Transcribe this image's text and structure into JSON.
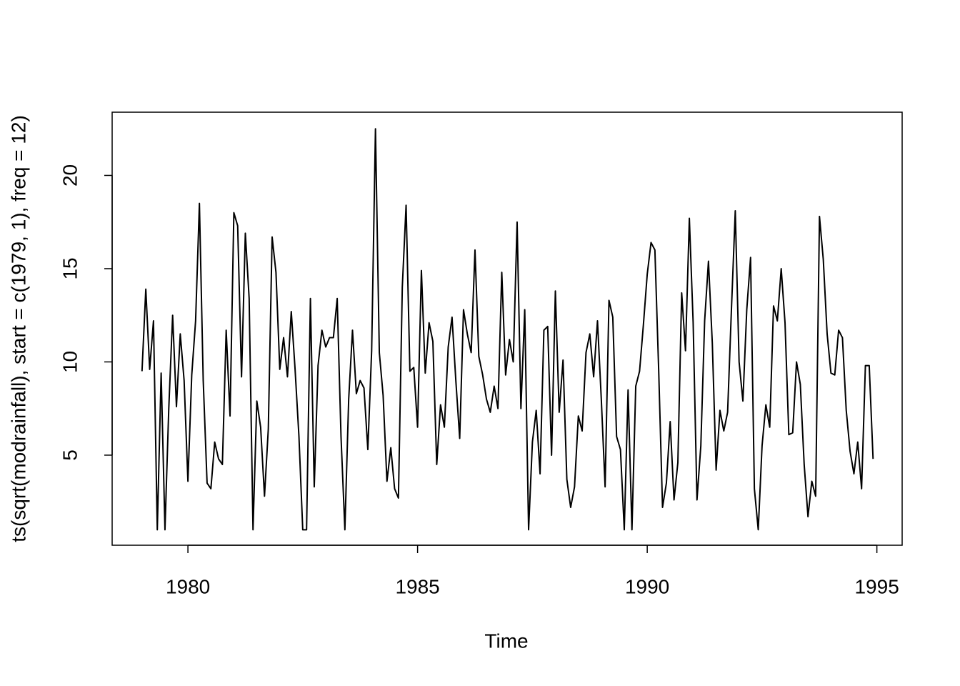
{
  "chart_data": {
    "type": "line",
    "xlabel": "Time",
    "ylabel": "ts(sqrt(modrainfall), start = c(1979, 1), freq = 12)",
    "x": [
      1979,
      1979.083,
      1979.167,
      1979.25,
      1979.333,
      1979.417,
      1979.5,
      1979.583,
      1979.667,
      1979.75,
      1979.833,
      1979.917,
      1980,
      1980.083,
      1980.167,
      1980.25,
      1980.333,
      1980.417,
      1980.5,
      1980.583,
      1980.667,
      1980.75,
      1980.833,
      1980.917,
      1981,
      1981.083,
      1981.167,
      1981.25,
      1981.333,
      1981.417,
      1981.5,
      1981.583,
      1981.667,
      1981.75,
      1981.833,
      1981.917,
      1982,
      1982.083,
      1982.167,
      1982.25,
      1982.333,
      1982.417,
      1982.5,
      1982.583,
      1982.667,
      1982.75,
      1982.833,
      1982.917,
      1983,
      1983.083,
      1983.167,
      1983.25,
      1983.333,
      1983.417,
      1983.5,
      1983.583,
      1983.667,
      1983.75,
      1983.833,
      1983.917,
      1984,
      1984.083,
      1984.167,
      1984.25,
      1984.333,
      1984.417,
      1984.5,
      1984.583,
      1984.667,
      1984.75,
      1984.833,
      1984.917,
      1985,
      1985.083,
      1985.167,
      1985.25,
      1985.333,
      1985.417,
      1985.5,
      1985.583,
      1985.667,
      1985.75,
      1985.833,
      1985.917,
      1986,
      1986.083,
      1986.167,
      1986.25,
      1986.333,
      1986.417,
      1986.5,
      1986.583,
      1986.667,
      1986.75,
      1986.833,
      1986.917,
      1987,
      1987.083,
      1987.167,
      1987.25,
      1987.333,
      1987.417,
      1987.5,
      1987.583,
      1987.667,
      1987.75,
      1987.833,
      1987.917,
      1988,
      1988.083,
      1988.167,
      1988.25,
      1988.333,
      1988.417,
      1988.5,
      1988.583,
      1988.667,
      1988.75,
      1988.833,
      1988.917,
      1989,
      1989.083,
      1989.167,
      1989.25,
      1989.333,
      1989.417,
      1989.5,
      1989.583,
      1989.667,
      1989.75,
      1989.833,
      1989.917,
      1990,
      1990.083,
      1990.167,
      1990.25,
      1990.333,
      1990.417,
      1990.5,
      1990.583,
      1990.667,
      1990.75,
      1990.833,
      1990.917,
      1991,
      1991.083,
      1991.167,
      1991.25,
      1991.333,
      1991.417,
      1991.5,
      1991.583,
      1991.667,
      1991.75,
      1991.833,
      1991.917,
      1992,
      1992.083,
      1992.167,
      1992.25,
      1992.333,
      1992.417,
      1992.5,
      1992.583,
      1992.667,
      1992.75,
      1992.833,
      1992.917,
      1993,
      1993.083,
      1993.167,
      1993.25,
      1993.333,
      1993.417,
      1993.5,
      1993.583,
      1993.667,
      1993.75,
      1993.833,
      1993.917,
      1994,
      1994.083,
      1994.167,
      1994.25,
      1994.333,
      1994.417,
      1994.5,
      1994.583,
      1994.667,
      1994.75,
      1994.833,
      1994.917
    ],
    "series": [
      {
        "color": "#000000",
        "values": [
          9.5,
          13.9,
          9.6,
          12.2,
          1.0,
          9.4,
          1.0,
          7.5,
          12.5,
          7.6,
          11.5,
          9.0,
          3.6,
          9.3,
          12.2,
          18.5,
          9.0,
          3.5,
          3.2,
          5.7,
          4.8,
          4.5,
          11.7,
          7.1,
          18.0,
          17.3,
          9.2,
          16.9,
          13.4,
          1.0,
          7.9,
          6.5,
          2.8,
          6.4,
          16.7,
          14.8,
          9.6,
          11.3,
          9.2,
          12.7,
          9.6,
          6.0,
          1.0,
          1.0,
          13.4,
          3.3,
          9.8,
          11.7,
          10.8,
          11.3,
          11.3,
          13.4,
          6.0,
          1.0,
          8.0,
          11.7,
          8.3,
          9.0,
          8.6,
          5.3,
          10.6,
          22.5,
          10.5,
          8.2,
          3.6,
          5.4,
          3.2,
          2.7,
          14.0,
          18.4,
          9.5,
          9.7,
          6.5,
          14.9,
          9.4,
          12.1,
          11.1,
          4.5,
          7.7,
          6.5,
          10.8,
          12.4,
          9.0,
          5.9,
          12.8,
          11.5,
          10.5,
          16.0,
          10.3,
          9.3,
          8.0,
          7.3,
          8.7,
          7.5,
          14.8,
          9.3,
          11.2,
          10.0,
          17.5,
          7.5,
          12.8,
          1.0,
          5.7,
          7.4,
          4.0,
          11.7,
          11.9,
          5.0,
          13.8,
          7.3,
          10.1,
          3.7,
          2.2,
          3.3,
          7.1,
          6.3,
          10.5,
          11.5,
          9.2,
          12.2,
          8.0,
          3.3,
          13.3,
          12.4,
          6.0,
          5.3,
          1.0,
          8.5,
          1.0,
          8.7,
          9.5,
          12.0,
          14.7,
          16.4,
          16.0,
          9.5,
          2.2,
          3.5,
          6.8,
          2.6,
          4.6,
          13.7,
          10.6,
          17.7,
          12.1,
          2.6,
          5.5,
          12.2,
          15.4,
          11.0,
          4.2,
          7.4,
          6.3,
          7.3,
          12.8,
          18.1,
          10.0,
          7.9,
          12.8,
          15.6,
          3.2,
          1.0,
          5.5,
          7.7,
          6.5,
          13.0,
          12.2,
          15.0,
          12.1,
          6.1,
          6.2,
          10.0,
          8.8,
          4.5,
          1.7,
          3.6,
          2.8,
          17.8,
          15.5,
          11.5,
          9.4,
          9.3,
          11.7,
          11.3,
          7.4,
          5.2,
          4.0,
          5.7,
          3.2,
          9.8,
          9.8,
          4.8
        ]
      }
    ],
    "xlim": [
      1978.35,
      1995.55
    ],
    "ylim": [
      0.17,
      23.39
    ],
    "xticks": [
      1980,
      1985,
      1990,
      1995
    ],
    "yticks": [
      5,
      10,
      15,
      20
    ]
  }
}
